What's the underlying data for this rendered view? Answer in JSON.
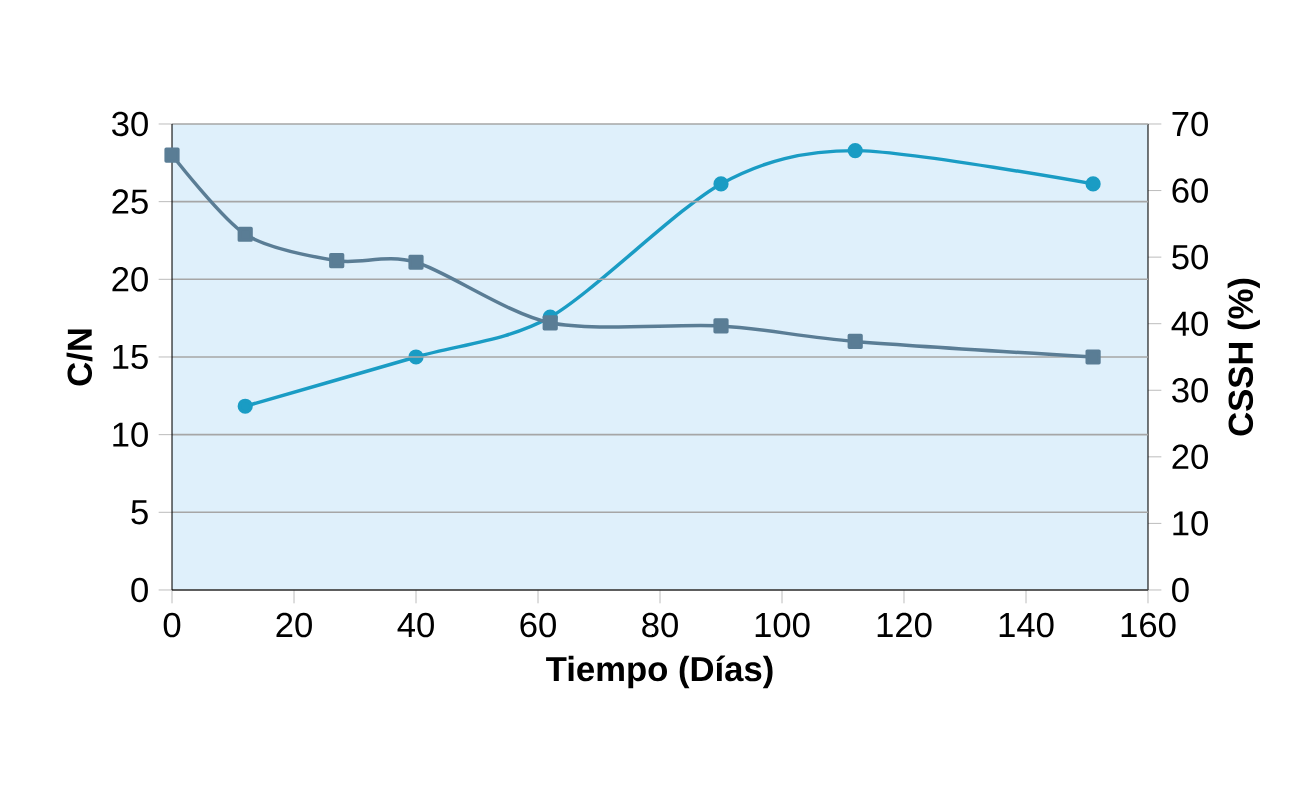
{
  "chart_data": {
    "type": "line",
    "xlabel": "Tiempo (Días)",
    "ylabel": "C/N",
    "y2label": "CSSH (%)",
    "xlim": [
      0,
      160
    ],
    "xticks": [
      0,
      20,
      40,
      60,
      80,
      100,
      120,
      140,
      160
    ],
    "ylim": [
      0,
      30
    ],
    "yticks": [
      0,
      5,
      10,
      15,
      20,
      25,
      30
    ],
    "y2lim": [
      0,
      70
    ],
    "y2ticks": [
      0,
      10,
      20,
      30,
      40,
      50,
      60,
      70
    ],
    "grid": "y",
    "series": [
      {
        "color": "#5a7d95",
        "marker": "square",
        "x": [
          0,
          12,
          27,
          40,
          62,
          90,
          112,
          151
        ],
        "values": [
          28,
          22.9,
          21.2,
          21.1,
          17.2,
          17,
          16,
          15
        ]
      },
      {
        "color": "#1a9cc4",
        "marker": "circle",
        "axis": "y2",
        "x": [
          12,
          40,
          62,
          90,
          112,
          151
        ],
        "values": [
          27.6,
          35,
          41,
          61,
          66,
          61
        ]
      }
    ]
  }
}
